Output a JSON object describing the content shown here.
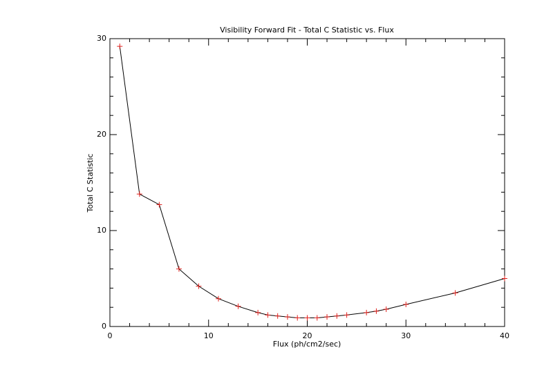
{
  "chart_data": {
    "type": "line",
    "title": "Visibility Forward Fit - Total C Statistic vs. Flux",
    "x_label": "Flux (ph/cm2/sec)",
    "y_label": "Total C Statistic",
    "x": [
      1,
      3,
      5,
      7,
      9,
      11,
      13,
      15,
      16,
      17,
      18,
      19,
      20,
      21,
      22,
      23,
      24,
      26,
      27,
      28,
      30,
      35,
      40
    ],
    "values": [
      29.2,
      13.8,
      12.7,
      6.0,
      4.2,
      2.9,
      2.1,
      1.45,
      1.2,
      1.1,
      1.0,
      0.9,
      0.9,
      0.9,
      1.0,
      1.1,
      1.2,
      1.45,
      1.6,
      1.8,
      2.3,
      3.5,
      5.0
    ],
    "color": "#000000",
    "marker": "plus",
    "marker_color": "#e0201c",
    "xlim": [
      0,
      40
    ],
    "xticks": [
      0,
      10,
      20,
      30,
      40
    ],
    "ylim": [
      0,
      30
    ],
    "yticks": [
      0,
      10,
      20,
      30
    ],
    "minor_ticks": 5,
    "grid": false
  }
}
